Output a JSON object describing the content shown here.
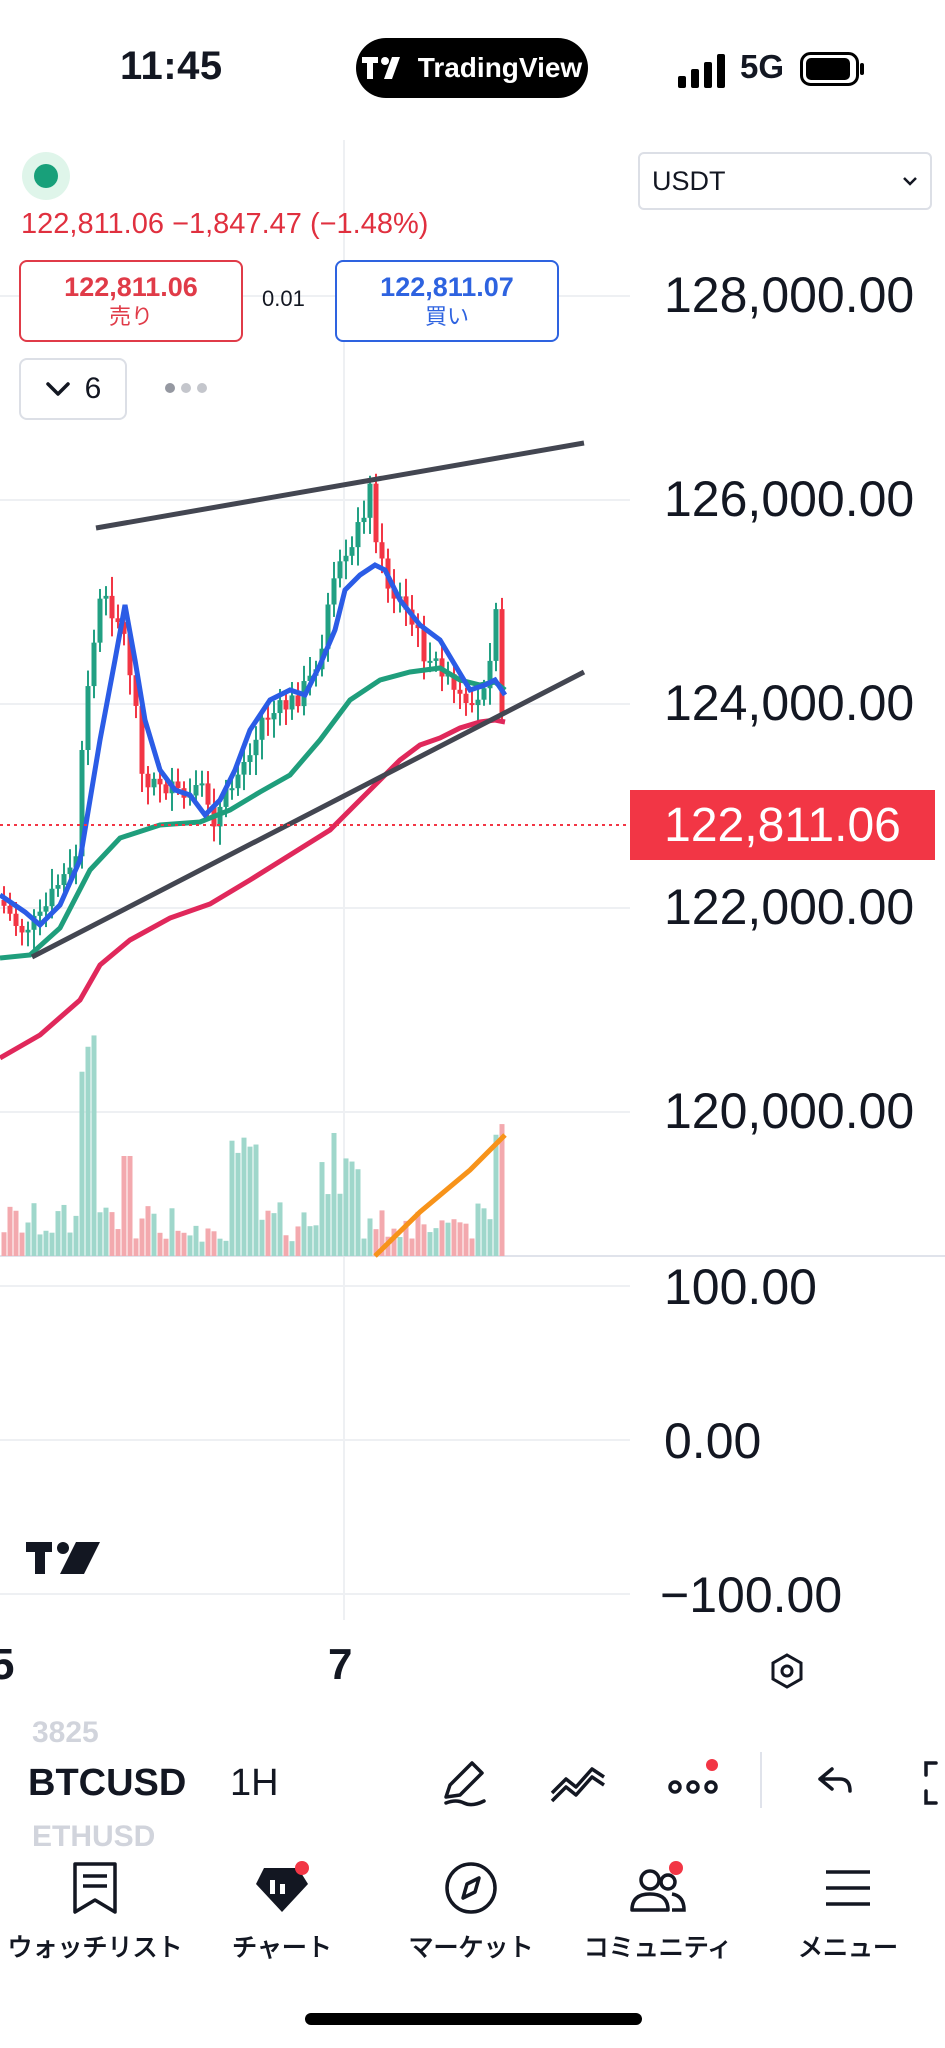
{
  "status_bar": {
    "time": "11:45",
    "app_pill": "TradingView",
    "network": "5G"
  },
  "header": {
    "last_price": "122,811.06",
    "change": "−1,847.47",
    "change_pct": "(−1.48%)",
    "sell_price": "122,811.06",
    "sell_label": "売り",
    "spread": "0.01",
    "buy_price": "122,811.07",
    "buy_label": "買い",
    "indicator_count": "6",
    "currency": "USDT"
  },
  "price_axis": [
    "128,000.00",
    "126,000.00",
    "124,000.00",
    "122,000.00",
    "120,000.00"
  ],
  "current_price_tag": "122,811.06",
  "oscillator_axis": [
    "100.00",
    "0.00",
    "−100.00"
  ],
  "time_axis": [
    "5",
    "7"
  ],
  "symbol_bar": {
    "previous_symbol": "3825",
    "current_symbol": "BTCUSD",
    "next_symbol": "ETHUSD",
    "interval": "1H"
  },
  "bottom_nav": [
    {
      "label": "ウォッチリスト",
      "icon": "watchlist-icon"
    },
    {
      "label": "チャート",
      "icon": "chart-icon"
    },
    {
      "label": "マーケット",
      "icon": "compass-icon"
    },
    {
      "label": "コミュニティ",
      "icon": "community-icon"
    },
    {
      "label": "メニュー",
      "icon": "menu-icon"
    }
  ],
  "colors": {
    "up": "#22a083",
    "down": "#f23645",
    "ema_fast": "#2b5ce6",
    "ema_mid": "#1f9e7c",
    "ema_slow": "#e0285b",
    "volume_ma": "#f7931a"
  }
}
